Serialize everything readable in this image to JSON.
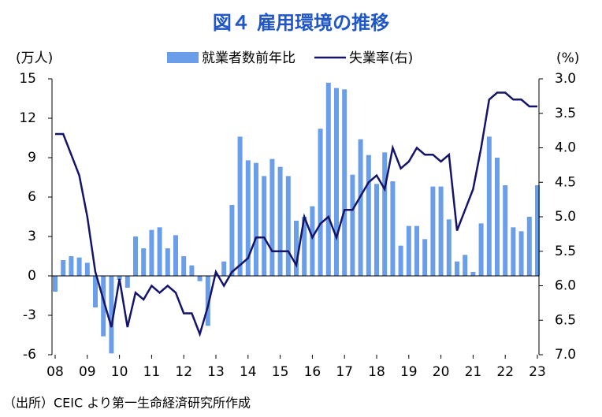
{
  "chart_data": {
    "type": "bar_line",
    "title": "図４ 雇用環境の推移",
    "y_label": "(万人)",
    "y2_label": "(%)",
    "source": "（出所）CEIC より第一生命経済研究所作成",
    "categories": [
      "08",
      null,
      null,
      null,
      "09",
      null,
      null,
      null,
      "10",
      null,
      null,
      null,
      "11",
      null,
      null,
      null,
      "12",
      null,
      null,
      null,
      "13",
      null,
      null,
      null,
      "14",
      null,
      null,
      null,
      "15",
      null,
      null,
      null,
      "16",
      null,
      null,
      null,
      "17",
      null,
      null,
      null,
      "18",
      null,
      null,
      null,
      "19",
      null,
      null,
      null,
      "20",
      null,
      null,
      null,
      "21",
      null,
      null,
      null,
      "22",
      null,
      null,
      null,
      "23"
    ],
    "series": [
      {
        "name": "就業者数前年比",
        "type": "bar",
        "color": "#6b9ee8",
        "values": [
          -1.2,
          1.2,
          1.5,
          1.4,
          1.0,
          -2.4,
          -4.6,
          -5.9,
          -0.3,
          -0.9,
          3.0,
          2.1,
          3.5,
          3.7,
          2.1,
          3.1,
          1.5,
          0.8,
          -0.4,
          -3.8,
          0.1,
          1.1,
          5.4,
          10.6,
          8.8,
          8.6,
          7.6,
          8.9,
          8.3,
          7.6,
          4.2,
          4.5,
          5.3,
          11.2,
          14.7,
          14.3,
          14.2,
          7.7,
          10.4,
          9.2,
          7.0,
          9.4,
          7.2,
          2.3,
          3.8,
          3.8,
          2.8,
          6.8,
          6.8,
          4.3,
          1.1,
          1.6,
          0.3,
          4.0,
          10.6,
          9.0,
          6.9,
          3.7,
          3.4,
          4.5,
          6.9
        ]
      },
      {
        "name": "失業率(右)",
        "type": "line",
        "axis": "y2",
        "color": "#14146b",
        "values": [
          3.8,
          3.8,
          4.1,
          4.4,
          5.0,
          5.8,
          6.2,
          6.6,
          5.9,
          6.6,
          6.1,
          6.2,
          6.0,
          6.1,
          6.0,
          6.1,
          6.4,
          6.4,
          6.7,
          6.3,
          5.8,
          6.0,
          5.8,
          5.7,
          5.6,
          5.3,
          5.3,
          5.5,
          5.5,
          5.5,
          5.7,
          5.0,
          5.3,
          5.1,
          5.0,
          5.3,
          4.9,
          4.9,
          4.7,
          4.5,
          4.4,
          4.6,
          4.0,
          4.3,
          4.2,
          4.0,
          4.1,
          4.1,
          4.2,
          4.1,
          5.2,
          4.9,
          4.6,
          4.0,
          3.3,
          3.2,
          3.2,
          3.3,
          3.3,
          3.4,
          3.4
        ]
      }
    ],
    "ylim": [
      -6,
      15
    ],
    "yticks": [
      15,
      12,
      9,
      6,
      3,
      0,
      -3,
      -6
    ],
    "y2lim": [
      7,
      3
    ],
    "y2inverted": true,
    "y2ticks": [
      {
        "value": 3,
        "label": "3.0"
      },
      3.5,
      {
        "value": 4,
        "label": "4.0"
      },
      4.5,
      {
        "value": 5,
        "label": "5.0"
      },
      5.5,
      {
        "value": 6,
        "label": "6.0"
      },
      6.5,
      {
        "value": 7,
        "label": "7.0"
      }
    ],
    "legend": "top"
  }
}
